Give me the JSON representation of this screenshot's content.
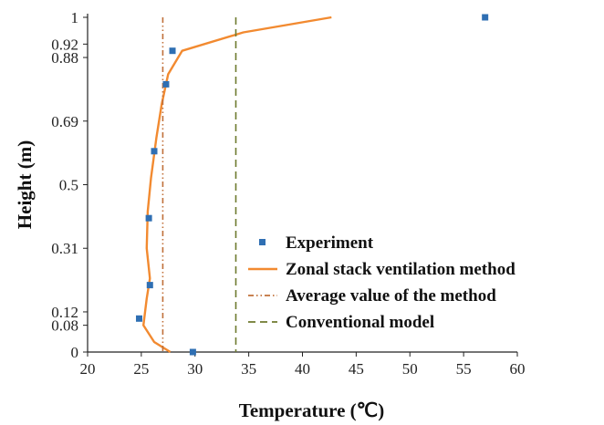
{
  "chart_data": {
    "type": "scatter",
    "title": "",
    "xlabel": "Temperature (℃)",
    "ylabel": "Height (m)",
    "xlim": [
      20,
      60
    ],
    "ylim": [
      0,
      1
    ],
    "x_ticks": [
      20,
      25,
      30,
      35,
      40,
      45,
      50,
      55,
      60
    ],
    "y_ticks": [
      0,
      0.08,
      0.12,
      0.31,
      0.5,
      0.69,
      0.88,
      0.92,
      1
    ],
    "y_tick_labels": [
      "0",
      "0.08",
      "0.12",
      "0.31",
      "0.5",
      "0.69",
      "0.88",
      "0.92",
      "1"
    ],
    "legend_position": "center-right",
    "series": [
      {
        "name": "Experiment",
        "kind": "scatter",
        "color": "#2f6fb3",
        "points": [
          {
            "x": 29.8,
            "y": 0.0
          },
          {
            "x": 24.8,
            "y": 0.1
          },
          {
            "x": 25.8,
            "y": 0.2
          },
          {
            "x": 25.7,
            "y": 0.4
          },
          {
            "x": 26.2,
            "y": 0.6
          },
          {
            "x": 27.3,
            "y": 0.8
          },
          {
            "x": 27.9,
            "y": 0.9
          },
          {
            "x": 57.0,
            "y": 1.0
          }
        ]
      },
      {
        "name": "Zonal stack ventilation method",
        "kind": "line",
        "color": "#f28a30",
        "points": [
          {
            "x": 27.7,
            "y": 0.0
          },
          {
            "x": 26.2,
            "y": 0.03
          },
          {
            "x": 25.2,
            "y": 0.08
          },
          {
            "x": 25.5,
            "y": 0.16
          },
          {
            "x": 25.8,
            "y": 0.22
          },
          {
            "x": 25.5,
            "y": 0.31
          },
          {
            "x": 25.6,
            "y": 0.42
          },
          {
            "x": 25.9,
            "y": 0.52
          },
          {
            "x": 26.4,
            "y": 0.64
          },
          {
            "x": 26.9,
            "y": 0.74
          },
          {
            "x": 27.5,
            "y": 0.83
          },
          {
            "x": 28.8,
            "y": 0.9
          },
          {
            "x": 34.5,
            "y": 0.955
          },
          {
            "x": 42.7,
            "y": 1.0
          }
        ]
      },
      {
        "name": "Average value of the method",
        "kind": "vline",
        "color": "#c0703a",
        "x": 27.0
      },
      {
        "name": "Conventional model",
        "kind": "vline",
        "color": "#6e7a2e",
        "x": 33.8
      }
    ]
  }
}
